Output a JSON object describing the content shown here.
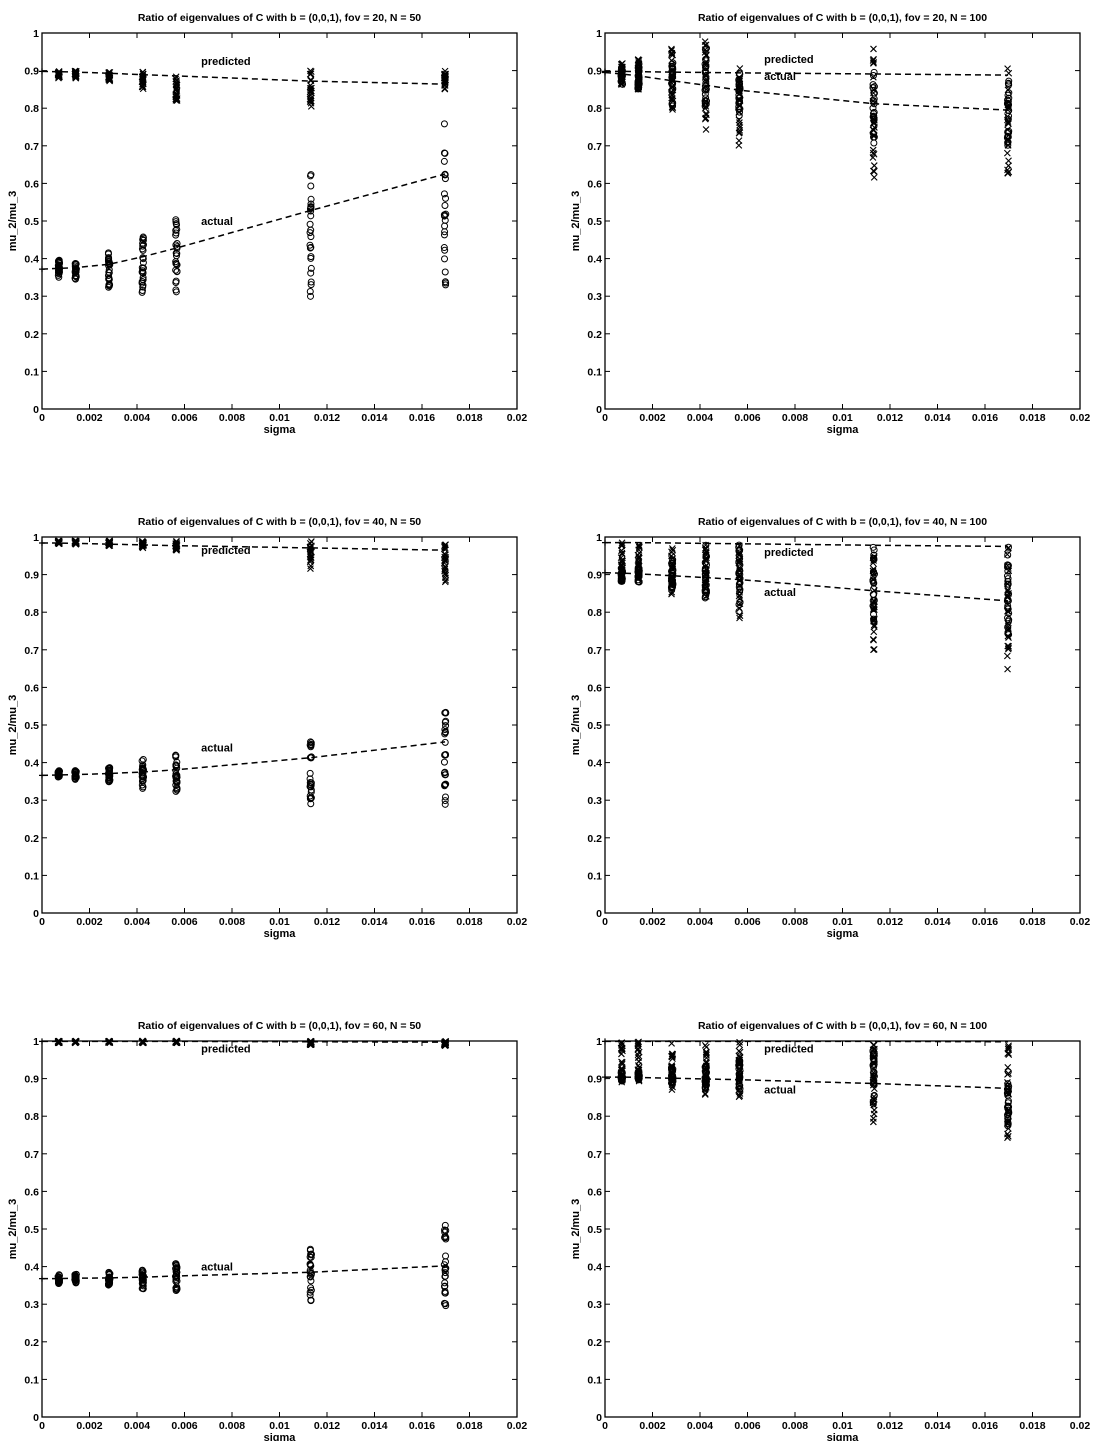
{
  "figure": {
    "chart_data": [
      {
        "type": "scatter",
        "title": "Ratio of eigenvalues of C with b = (0,0,1), fov = 20, N = 50",
        "xlabel": "sigma",
        "ylabel": "mu_2/mu_3",
        "xlim": [
          0,
          0.02
        ],
        "ylim": [
          0,
          1
        ],
        "xticks": [
          "0",
          "0.002",
          "0.004",
          "0.006",
          "0.008",
          "0.01",
          "0.012",
          "0.014",
          "0.016",
          "0.018",
          "0.02"
        ],
        "yticks": [
          "0",
          "0.1",
          "0.2",
          "0.3",
          "0.4",
          "0.5",
          "0.6",
          "0.7",
          "0.8",
          "0.9",
          "1"
        ],
        "grid": false,
        "annotations": [
          {
            "text": "predicted",
            "x": 0.0067,
            "y": 0.915
          },
          {
            "text": "actual",
            "x": 0.0067,
            "y": 0.49
          }
        ],
        "series": [
          {
            "name": "predicted",
            "style": "dashed",
            "x": [
              0,
              0.000707,
              0.001414,
              0.002828,
              0.004243,
              0.005657,
              0.011314,
              0.016971
            ],
            "y": [
              0.898,
              0.897,
              0.896,
              0.893,
              0.889,
              0.886,
              0.872,
              0.864
            ]
          },
          {
            "name": "actual",
            "style": "dashed",
            "x": [
              0,
              0.000707,
              0.001414,
              0.002828,
              0.004243,
              0.005657,
              0.011314,
              0.016971
            ],
            "y": [
              0.372,
              0.374,
              0.376,
              0.385,
              0.405,
              0.428,
              0.528,
              0.625
            ]
          },
          {
            "marker": "x",
            "x": [
              0.000707,
              0.001414,
              0.002828,
              0.004243,
              0.005657,
              0.011314,
              0.016971
            ],
            "ymin": [
              0.88,
              0.88,
              0.87,
              0.85,
              0.82,
              0.8,
              0.85
            ],
            "ymax": [
              0.9,
              0.9,
              0.9,
              0.9,
              0.89,
              0.9,
              0.9
            ]
          },
          {
            "marker": "o",
            "x": [
              0.000707,
              0.001414,
              0.002828,
              0.004243,
              0.005657,
              0.011314,
              0.016971
            ],
            "ymin": [
              0.35,
              0.345,
              0.315,
              0.31,
              0.3,
              0.285,
              0.3
            ],
            "ymax": [
              0.4,
              0.39,
              0.42,
              0.46,
              0.51,
              0.64,
              0.76
            ]
          }
        ]
      },
      {
        "type": "scatter",
        "title": "Ratio of eigenvalues of C with b = (0,0,1), fov = 20, N = 100",
        "xlabel": "sigma",
        "ylabel": "mu_2/mu_3",
        "xlim": [
          0,
          0.02
        ],
        "ylim": [
          0,
          1
        ],
        "xticks": [
          "0",
          "0.002",
          "0.004",
          "0.006",
          "0.008",
          "0.01",
          "0.012",
          "0.014",
          "0.016",
          "0.018",
          "0.02"
        ],
        "yticks": [
          "0",
          "0.1",
          "0.2",
          "0.3",
          "0.4",
          "0.5",
          "0.6",
          "0.7",
          "0.8",
          "0.9",
          "1"
        ],
        "grid": false,
        "annotations": [
          {
            "text": "predicted",
            "x": 0.0067,
            "y": 0.92
          },
          {
            "text": "actual",
            "x": 0.0067,
            "y": 0.875
          }
        ],
        "series": [
          {
            "name": "predicted",
            "style": "dashed",
            "x": [
              0,
              0.000707,
              0.001414,
              0.002828,
              0.004243,
              0.005657,
              0.011314,
              0.016971
            ],
            "y": [
              0.898,
              0.898,
              0.897,
              0.896,
              0.895,
              0.894,
              0.891,
              0.888
            ]
          },
          {
            "name": "actual",
            "style": "dashed",
            "x": [
              0,
              0.000707,
              0.001414,
              0.002828,
              0.004243,
              0.005657,
              0.011314,
              0.016971
            ],
            "y": [
              0.895,
              0.891,
              0.886,
              0.873,
              0.861,
              0.848,
              0.812,
              0.795
            ]
          },
          {
            "marker": "x",
            "x": [
              0.000707,
              0.001414,
              0.002828,
              0.004243,
              0.005657,
              0.011314,
              0.016971
            ],
            "ymin": [
              0.86,
              0.84,
              0.78,
              0.71,
              0.7,
              0.6,
              0.6
            ],
            "ymax": [
              0.92,
              0.93,
              0.96,
              0.99,
              0.91,
              0.96,
              0.92
            ]
          },
          {
            "marker": "o",
            "x": [
              0.000707,
              0.001414,
              0.002828,
              0.004243,
              0.005657,
              0.011314,
              0.016971
            ],
            "ymin": [
              0.86,
              0.85,
              0.8,
              0.8,
              0.78,
              0.7,
              0.7
            ],
            "ymax": [
              0.91,
              0.92,
              0.95,
              0.97,
              0.9,
              0.9,
              0.88
            ]
          }
        ]
      },
      {
        "type": "scatter",
        "title": "Ratio of eigenvalues of C with b = (0,0,1), fov = 40, N = 50",
        "xlabel": "sigma",
        "ylabel": "mu_2/mu_3",
        "xlim": [
          0,
          0.02
        ],
        "ylim": [
          0,
          1
        ],
        "xticks": [
          "0",
          "0.002",
          "0.004",
          "0.006",
          "0.008",
          "0.01",
          "0.012",
          "0.014",
          "0.016",
          "0.018",
          "0.02"
        ],
        "yticks": [
          "0",
          "0.1",
          "0.2",
          "0.3",
          "0.4",
          "0.5",
          "0.6",
          "0.7",
          "0.8",
          "0.9",
          "1"
        ],
        "grid": false,
        "annotations": [
          {
            "text": "predicted",
            "x": 0.0067,
            "y": 0.955
          },
          {
            "text": "actual",
            "x": 0.0067,
            "y": 0.43
          }
        ],
        "series": [
          {
            "name": "predicted",
            "style": "dashed",
            "x": [
              0,
              0.000707,
              0.001414,
              0.002828,
              0.004243,
              0.005657,
              0.011314,
              0.016971
            ],
            "y": [
              0.984,
              0.984,
              0.983,
              0.981,
              0.979,
              0.977,
              0.971,
              0.965
            ]
          },
          {
            "name": "actual",
            "style": "dashed",
            "x": [
              0,
              0.000707,
              0.001414,
              0.002828,
              0.004243,
              0.005657,
              0.011314,
              0.016971
            ],
            "y": [
              0.366,
              0.367,
              0.368,
              0.371,
              0.375,
              0.381,
              0.413,
              0.455
            ]
          },
          {
            "marker": "x",
            "x": [
              0.000707,
              0.001414,
              0.002828,
              0.004243,
              0.005657,
              0.011314,
              0.016971
            ],
            "ymin": [
              0.98,
              0.98,
              0.975,
              0.97,
              0.96,
              0.91,
              0.88
            ],
            "ymax": [
              0.99,
              0.99,
              0.99,
              0.99,
              0.99,
              0.99,
              0.99
            ]
          },
          {
            "marker": "o",
            "x": [
              0.000707,
              0.001414,
              0.002828,
              0.004243,
              0.005657,
              0.011314,
              0.016971
            ],
            "ymin": [
              0.36,
              0.355,
              0.34,
              0.33,
              0.32,
              0.285,
              0.275
            ],
            "ymax": [
              0.38,
              0.38,
              0.39,
              0.41,
              0.42,
              0.475,
              0.54
            ]
          }
        ]
      },
      {
        "type": "scatter",
        "title": "Ratio of eigenvalues of C with b = (0,0,1), fov = 40, N = 100",
        "xlabel": "sigma",
        "ylabel": "mu_2/mu_3",
        "xlim": [
          0,
          0.02
        ],
        "ylim": [
          0,
          1
        ],
        "xticks": [
          "0",
          "0.002",
          "0.004",
          "0.006",
          "0.008",
          "0.01",
          "0.012",
          "0.014",
          "0.016",
          "0.018",
          "0.02"
        ],
        "yticks": [
          "0",
          "0.1",
          "0.2",
          "0.3",
          "0.4",
          "0.5",
          "0.6",
          "0.7",
          "0.8",
          "0.9",
          "1"
        ],
        "grid": false,
        "annotations": [
          {
            "text": "predicted",
            "x": 0.0067,
            "y": 0.95
          },
          {
            "text": "actual",
            "x": 0.0067,
            "y": 0.843
          }
        ],
        "series": [
          {
            "name": "predicted",
            "style": "dashed",
            "x": [
              0,
              0.000707,
              0.001414,
              0.002828,
              0.004243,
              0.005657,
              0.011314,
              0.016971
            ],
            "y": [
              0.985,
              0.985,
              0.985,
              0.984,
              0.983,
              0.982,
              0.978,
              0.975
            ]
          },
          {
            "name": "actual",
            "style": "dashed",
            "x": [
              0,
              0.000707,
              0.001414,
              0.002828,
              0.004243,
              0.005657,
              0.011314,
              0.016971
            ],
            "y": [
              0.905,
              0.904,
              0.902,
              0.897,
              0.892,
              0.887,
              0.857,
              0.83
            ]
          },
          {
            "marker": "x",
            "x": [
              0.000707,
              0.001414,
              0.002828,
              0.004243,
              0.005657,
              0.011314,
              0.016971
            ],
            "ymin": [
              0.88,
              0.88,
              0.84,
              0.81,
              0.78,
              0.69,
              0.635
            ],
            "ymax": [
              0.985,
              0.985,
              0.985,
              0.985,
              0.985,
              0.985,
              0.985
            ]
          },
          {
            "marker": "o",
            "x": [
              0.000707,
              0.001414,
              0.002828,
              0.004243,
              0.005657,
              0.011314,
              0.016971
            ],
            "ymin": [
              0.88,
              0.88,
              0.85,
              0.83,
              0.8,
              0.77,
              0.74
            ],
            "ymax": [
              0.92,
              0.92,
              0.95,
              0.98,
              0.98,
              0.98,
              0.98
            ]
          }
        ]
      },
      {
        "type": "scatter",
        "title": "Ratio of eigenvalues of C with b = (0,0,1), fov = 60, N = 50",
        "xlabel": "sigma",
        "ylabel": "mu_2/mu_3",
        "xlim": [
          0,
          0.02
        ],
        "ylim": [
          0,
          1
        ],
        "xticks": [
          "0",
          "0.002",
          "0.004",
          "0.006",
          "0.008",
          "0.01",
          "0.012",
          "0.014",
          "0.016",
          "0.018",
          "0.02"
        ],
        "yticks": [
          "0",
          "0.1",
          "0.2",
          "0.3",
          "0.4",
          "0.5",
          "0.6",
          "0.7",
          "0.8",
          "0.9",
          "1"
        ],
        "grid": false,
        "annotations": [
          {
            "text": "predicted",
            "x": 0.0067,
            "y": 0.97
          },
          {
            "text": "actual",
            "x": 0.0067,
            "y": 0.39
          }
        ],
        "series": [
          {
            "name": "predicted",
            "style": "dashed",
            "x": [
              0,
              0.000707,
              0.001414,
              0.002828,
              0.004243,
              0.005657,
              0.011314,
              0.016971
            ],
            "y": [
              0.999,
              0.999,
              0.999,
              0.999,
              0.999,
              0.999,
              0.998,
              0.997
            ]
          },
          {
            "name": "actual",
            "style": "dashed",
            "x": [
              0,
              0.000707,
              0.001414,
              0.002828,
              0.004243,
              0.005657,
              0.011314,
              0.016971
            ],
            "y": [
              0.368,
              0.368,
              0.369,
              0.37,
              0.372,
              0.375,
              0.385,
              0.402
            ]
          },
          {
            "marker": "x",
            "x": [
              0.000707,
              0.001414,
              0.002828,
              0.004243,
              0.005657,
              0.011314,
              0.016971
            ],
            "ymin": [
              0.995,
              0.995,
              0.995,
              0.995,
              0.995,
              0.99,
              0.98
            ],
            "ymax": [
              1.0,
              1.0,
              1.0,
              1.0,
              1.0,
              1.0,
              1.0
            ]
          },
          {
            "marker": "o",
            "x": [
              0.000707,
              0.001414,
              0.002828,
              0.004243,
              0.005657,
              0.011314,
              0.016971
            ],
            "ymin": [
              0.355,
              0.355,
              0.35,
              0.34,
              0.335,
              0.305,
              0.285
            ],
            "ymax": [
              0.38,
              0.38,
              0.385,
              0.395,
              0.41,
              0.46,
              0.51
            ]
          }
        ]
      },
      {
        "type": "scatter",
        "title": "Ratio of eigenvalues of C with b = (0,0,1), fov = 60, N = 100",
        "xlabel": "sigma",
        "ylabel": "mu_2/mu_3",
        "xlim": [
          0,
          0.02
        ],
        "ylim": [
          0,
          1
        ],
        "xticks": [
          "0",
          "0.002",
          "0.004",
          "0.006",
          "0.008",
          "0.01",
          "0.012",
          "0.014",
          "0.016",
          "0.018",
          "0.02"
        ],
        "yticks": [
          "0",
          "0.1",
          "0.2",
          "0.3",
          "0.4",
          "0.5",
          "0.6",
          "0.7",
          "0.8",
          "0.9",
          "1"
        ],
        "grid": false,
        "annotations": [
          {
            "text": "predicted",
            "x": 0.0067,
            "y": 0.97
          },
          {
            "text": "actual",
            "x": 0.0067,
            "y": 0.86
          }
        ],
        "series": [
          {
            "name": "predicted",
            "style": "dashed",
            "x": [
              0,
              0.000707,
              0.001414,
              0.002828,
              0.004243,
              0.005657,
              0.011314,
              0.016971
            ],
            "y": [
              0.999,
              0.999,
              0.999,
              0.999,
              0.999,
              0.999,
              0.999,
              0.998
            ]
          },
          {
            "name": "actual",
            "style": "dashed",
            "x": [
              0,
              0.000707,
              0.001414,
              0.002828,
              0.004243,
              0.005657,
              0.011314,
              0.016971
            ],
            "y": [
              0.904,
              0.904,
              0.903,
              0.901,
              0.899,
              0.897,
              0.887,
              0.874
            ]
          },
          {
            "marker": "x",
            "x": [
              0.000707,
              0.001414,
              0.002828,
              0.004243,
              0.005657,
              0.011314,
              0.016971
            ],
            "ymin": [
              0.89,
              0.89,
              0.87,
              0.85,
              0.83,
              0.78,
              0.74
            ],
            "ymax": [
              1.0,
              1.0,
              1.0,
              1.0,
              1.0,
              1.0,
              1.0
            ]
          },
          {
            "marker": "o",
            "x": [
              0.000707,
              0.001414,
              0.002828,
              0.004243,
              0.005657,
              0.011314,
              0.016971
            ],
            "ymin": [
              0.89,
              0.89,
              0.88,
              0.87,
              0.86,
              0.82,
              0.77
            ],
            "ymax": [
              0.92,
              0.92,
              0.93,
              0.94,
              0.95,
              0.99,
              0.95
            ]
          }
        ]
      }
    ]
  }
}
